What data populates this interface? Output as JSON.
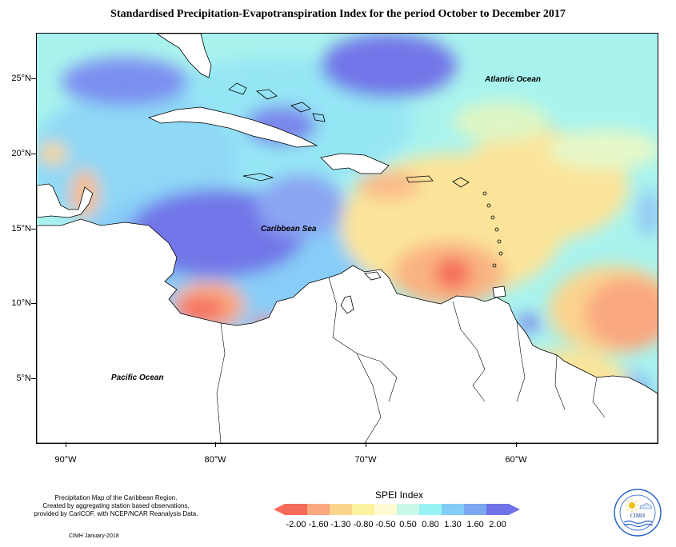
{
  "title": "Standardised Precipitation-Evapotranspiration Index for the period October to December 2017",
  "labels": {
    "atlantic": "Atlantic Ocean",
    "caribbean": "Caribbean Sea",
    "pacific": "Pacific Ocean"
  },
  "axes": {
    "latitudes": [
      "25°N",
      "20°N",
      "15°N",
      "10°N",
      "5°N"
    ],
    "longitudes": [
      "90°W",
      "80°W",
      "70°W",
      "60°W"
    ]
  },
  "legend": {
    "title": "SPEI Index",
    "ticks": [
      "-2.00",
      "-1.60",
      "-1.30",
      "-0.80",
      "-0.50",
      "0.50",
      "0.80",
      "1.30",
      "1.60",
      "2.00"
    ],
    "colors": [
      "#f56b5a",
      "#f9a780",
      "#fbd48e",
      "#fdf2a0",
      "#fdfbd2",
      "#c9f8e6",
      "#98f3f5",
      "#81cdf6",
      "#7da6f0",
      "#6e72e6"
    ]
  },
  "footnote": {
    "line1": "Precipitation Map of the Caribbean Region.",
    "line2": "Created by aggregating station based observations,",
    "line3": "provided by CariCOF, with NCEP/NCAR Reanalysis Data.",
    "date": "CIMH January-2018"
  },
  "logo": {
    "text": "CIMH"
  }
}
